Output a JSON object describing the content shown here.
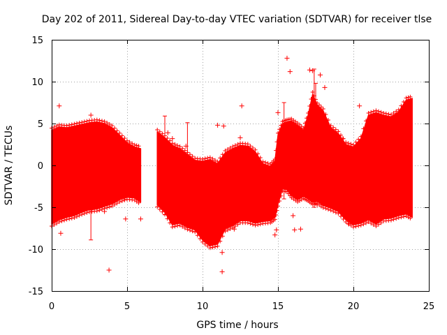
{
  "chart_data": {
    "type": "scatter",
    "title": "Day 202 of 2011, Sidereal Day-to-day VTEC variation (SDTVAR) for receiver tlse",
    "xlabel": "GPS time / hours",
    "ylabel": "SDTVAR / TECUs",
    "xlim": [
      0,
      25
    ],
    "ylim": [
      -15,
      15
    ],
    "xticks": [
      0,
      5,
      10,
      15,
      20,
      25
    ],
    "yticks": [
      -15,
      -10,
      -5,
      0,
      5,
      10,
      15
    ],
    "grid": true,
    "marker": "plus",
    "color": "#ff0000",
    "band_segments": [
      {
        "x": [
          0.0,
          0.5,
          1.0,
          1.5,
          2.0,
          2.5,
          3.0,
          3.5,
          4.0,
          4.5,
          5.0,
          5.5,
          5.9
        ],
        "upper": [
          4.2,
          4.6,
          4.5,
          4.7,
          4.9,
          5.1,
          5.2,
          5.0,
          4.5,
          3.6,
          2.7,
          2.2,
          2.0
        ],
        "lower": [
          -7.0,
          -6.5,
          -6.2,
          -6.0,
          -5.6,
          -5.3,
          -5.2,
          -4.9,
          -4.6,
          -4.1,
          -3.8,
          -3.9,
          -4.4
        ]
      },
      {
        "x": [
          7.0,
          7.5,
          8.0,
          8.5,
          9.0,
          9.5,
          10.0,
          10.5,
          11.0,
          11.5,
          12.0,
          12.5,
          13.0,
          13.5,
          14.0,
          14.5,
          14.8,
          15.0,
          15.3,
          15.6,
          15.9
        ],
        "upper": [
          4.0,
          3.3,
          2.4,
          2.0,
          1.3,
          0.6,
          0.5,
          0.7,
          0.2,
          1.5,
          2.0,
          2.4,
          2.3,
          1.6,
          0.2,
          -0.1,
          0.5,
          3.6,
          5.0,
          5.2,
          5.3
        ],
        "lower": [
          -4.7,
          -5.6,
          -7.1,
          -6.9,
          -7.4,
          -7.7,
          -8.9,
          -9.6,
          -9.4,
          -7.6,
          -7.2,
          -6.6,
          -6.6,
          -6.9,
          -6.7,
          -6.6,
          -6.2,
          -4.6,
          -2.8,
          -2.9,
          -3.6
        ]
      },
      {
        "x": [
          15.9,
          16.3,
          16.7,
          17.0,
          17.3,
          17.6,
          18.0,
          18.5,
          19.0,
          19.5,
          20.0,
          20.5,
          21.0,
          21.5,
          22.0,
          22.5,
          23.0,
          23.5,
          23.9
        ],
        "upper": [
          5.3,
          4.8,
          4.2,
          6.0,
          8.5,
          7.2,
          6.5,
          4.5,
          3.8,
          2.5,
          2.2,
          3.2,
          6.0,
          6.3,
          6.0,
          5.8,
          6.4,
          7.8,
          8.0
        ],
        "lower": [
          -3.6,
          -4.1,
          -3.7,
          -4.0,
          -4.4,
          -4.3,
          -4.8,
          -5.1,
          -5.5,
          -6.5,
          -7.1,
          -6.9,
          -6.5,
          -7.0,
          -6.4,
          -6.3,
          -6.0,
          -5.8,
          -6.2
        ]
      }
    ],
    "outliers": [
      [
        0.5,
        7.1
      ],
      [
        0.6,
        -8.1
      ],
      [
        2.6,
        6.0
      ],
      [
        2.6,
        -5.3
      ],
      [
        3.3,
        -4.5
      ],
      [
        3.5,
        -5.5
      ],
      [
        3.8,
        -12.5
      ],
      [
        4.8,
        -3.9
      ],
      [
        4.9,
        -6.4
      ],
      [
        5.9,
        -6.4
      ],
      [
        7.7,
        3.9
      ],
      [
        8.0,
        3.2
      ],
      [
        8.9,
        2.3
      ],
      [
        11.0,
        4.8
      ],
      [
        11.2,
        -8.1
      ],
      [
        11.3,
        -10.4
      ],
      [
        11.3,
        -12.7
      ],
      [
        11.4,
        4.7
      ],
      [
        12.1,
        -7.6
      ],
      [
        12.5,
        3.3
      ],
      [
        12.6,
        7.1
      ],
      [
        14.8,
        -8.3
      ],
      [
        14.9,
        -7.7
      ],
      [
        15.0,
        6.3
      ],
      [
        15.6,
        12.8
      ],
      [
        15.8,
        11.2
      ],
      [
        16.0,
        -6.0
      ],
      [
        16.1,
        -7.7
      ],
      [
        16.5,
        -7.6
      ],
      [
        17.1,
        11.4
      ],
      [
        17.3,
        11.3
      ],
      [
        17.6,
        -4.7
      ],
      [
        17.8,
        10.8
      ],
      [
        18.1,
        9.3
      ],
      [
        19.3,
        3.2
      ],
      [
        19.7,
        -7.0
      ],
      [
        20.2,
        -6.6
      ],
      [
        20.4,
        7.1
      ],
      [
        21.1,
        -6.1
      ]
    ],
    "error_bars": [
      {
        "x": 2.6,
        "low": -8.9,
        "high": -3.8
      },
      {
        "x": 7.5,
        "low": -5.9,
        "high": 5.9
      },
      {
        "x": 9.0,
        "low": -1.0,
        "high": 5.1
      },
      {
        "x": 15.4,
        "low": -4.0,
        "high": 7.5
      },
      {
        "x": 17.4,
        "low": -5.0,
        "high": 11.5
      },
      {
        "x": 17.5,
        "low": -4.5,
        "high": 9.8
      }
    ]
  }
}
